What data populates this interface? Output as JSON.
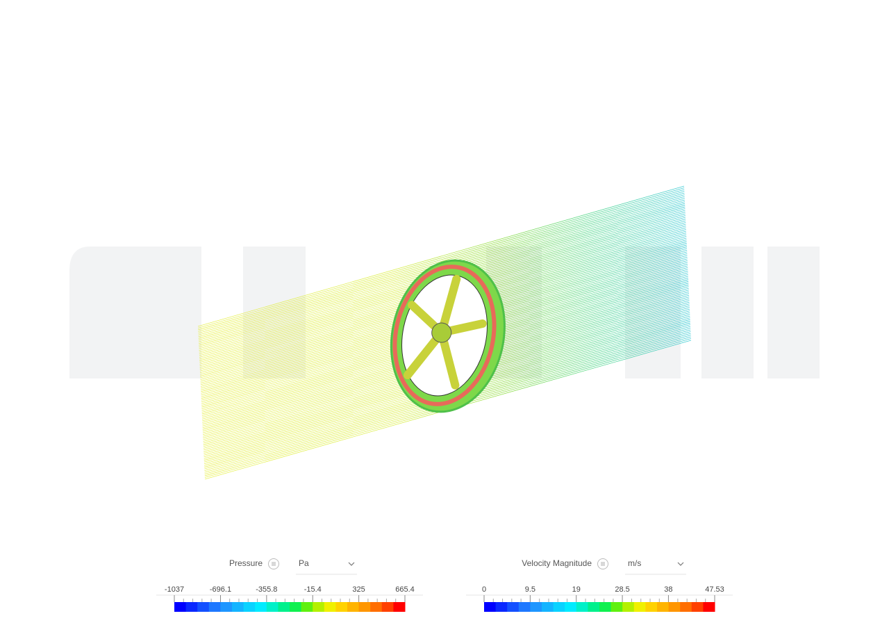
{
  "legends": [
    {
      "title": "Pressure",
      "unit": "Pa",
      "ticks": [
        -1037,
        -696.1,
        -355.8,
        -15.4,
        325,
        665.4
      ]
    },
    {
      "title": "Velocity Magnitude",
      "unit": "m/s",
      "ticks": [
        0,
        9.5,
        19,
        28.5,
        38,
        47.53
      ]
    }
  ]
}
